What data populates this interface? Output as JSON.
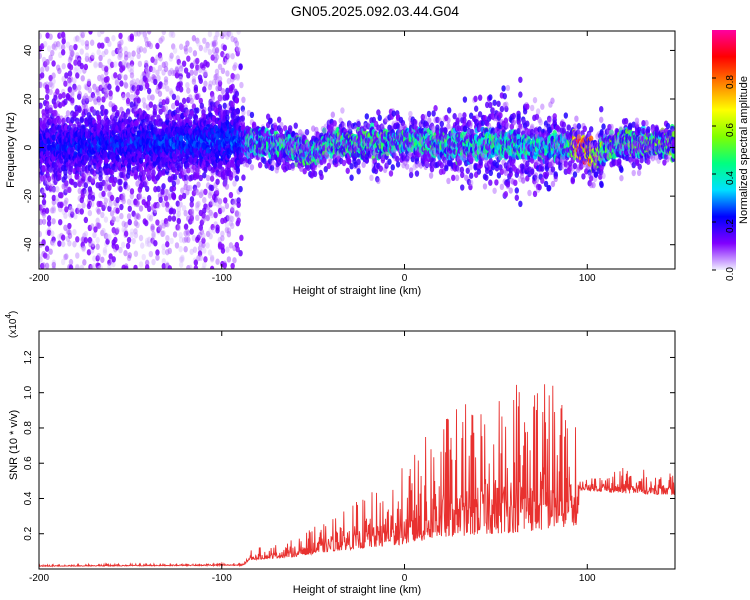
{
  "figure": {
    "title": "GN05.2025.092.03.44.G04"
  },
  "chart_data": [
    {
      "type": "heatmap",
      "xlabel": "Height of straight line (km)",
      "ylabel": "Frequency (Hz)",
      "xlim": [
        -200,
        148
      ],
      "ylim": [
        -50,
        48
      ],
      "xticks": [
        -200,
        -100,
        0,
        100
      ],
      "yticks": [
        -40,
        -20,
        0,
        20,
        40
      ],
      "grid": false,
      "colorbar": {
        "label": "Normalized spectral amplitude",
        "range": [
          0,
          1
        ],
        "ticks": [
          "0.0",
          "0.2",
          "0.4",
          "0.6",
          "0.8"
        ],
        "colors": [
          "#f0f0ff",
          "#8000ff",
          "#0000ff",
          "#00e0ff",
          "#00ff80",
          "#80ff00",
          "#ffff00",
          "#ff8000",
          "#ff0000",
          "#ff00a0"
        ]
      },
      "center_frequency_profile": [
        {
          "x": -200,
          "y": 0
        },
        {
          "x": -90,
          "y": 3
        },
        {
          "x": -80,
          "y": 2
        },
        {
          "x": -70,
          "y": 1
        },
        {
          "x": -60,
          "y": 0
        },
        {
          "x": -50,
          "y": -3
        },
        {
          "x": -40,
          "y": 2
        },
        {
          "x": -30,
          "y": 1
        },
        {
          "x": -20,
          "y": 1
        },
        {
          "x": -10,
          "y": 2
        },
        {
          "x": 0,
          "y": 3
        },
        {
          "x": 10,
          "y": 2
        },
        {
          "x": 20,
          "y": 1
        },
        {
          "x": 30,
          "y": 0
        },
        {
          "x": 40,
          "y": 1
        },
        {
          "x": 50,
          "y": 2
        },
        {
          "x": 60,
          "y": 1
        },
        {
          "x": 70,
          "y": 0
        },
        {
          "x": 80,
          "y": 0
        },
        {
          "x": 90,
          "y": 1
        },
        {
          "x": 100,
          "y": 0
        },
        {
          "x": 105,
          "y": -5
        },
        {
          "x": 110,
          "y": 0
        },
        {
          "x": 120,
          "y": 2
        },
        {
          "x": 130,
          "y": 1
        },
        {
          "x": 140,
          "y": 2
        },
        {
          "x": 148,
          "y": 1
        }
      ],
      "spread_hz": [
        {
          "x": -200,
          "sd": 45
        },
        {
          "x": -90,
          "sd": 45
        },
        {
          "x": -88,
          "sd": 6
        },
        {
          "x": 20,
          "sd": 8
        },
        {
          "x": 60,
          "sd": 14
        },
        {
          "x": 90,
          "sd": 8
        },
        {
          "x": 148,
          "sd": 4
        }
      ],
      "peak_amplitude": [
        {
          "x": -200,
          "a": 0.15
        },
        {
          "x": -90,
          "a": 0.2
        },
        {
          "x": -85,
          "a": 0.45
        },
        {
          "x": -20,
          "a": 0.5
        },
        {
          "x": 40,
          "a": 0.45
        },
        {
          "x": 90,
          "a": 0.45
        },
        {
          "x": 95,
          "a": 0.95
        },
        {
          "x": 110,
          "a": 0.5
        },
        {
          "x": 148,
          "a": 0.55
        }
      ]
    },
    {
      "type": "line",
      "xlabel": "Height of straight line (km)",
      "ylabel": "SNR (10 * v/v)",
      "y_multiplier": "x10^4",
      "xlim": [
        -200,
        148
      ],
      "ylim": [
        0,
        1.35
      ],
      "xticks": [
        -200,
        -100,
        0,
        100
      ],
      "yticks": [
        0.2,
        0.4,
        0.6,
        0.8,
        1.0,
        1.2
      ],
      "grid": false,
      "color": "#e8312f",
      "envelope": [
        {
          "x": -200,
          "base": 0.015,
          "amp": 0.01
        },
        {
          "x": -88,
          "base": 0.02,
          "amp": 0.015
        },
        {
          "x": -85,
          "base": 0.05,
          "amp": 0.06
        },
        {
          "x": -60,
          "base": 0.07,
          "amp": 0.1
        },
        {
          "x": -40,
          "base": 0.1,
          "amp": 0.2
        },
        {
          "x": -20,
          "base": 0.12,
          "amp": 0.3
        },
        {
          "x": 0,
          "base": 0.14,
          "amp": 0.45
        },
        {
          "x": 20,
          "base": 0.18,
          "amp": 0.7
        },
        {
          "x": 50,
          "base": 0.2,
          "amp": 0.85
        },
        {
          "x": 75,
          "base": 0.22,
          "amp": 1.0
        },
        {
          "x": 95,
          "base": 0.25,
          "amp": 0.55
        },
        {
          "x": 96,
          "base": 0.45,
          "amp": 0.06
        },
        {
          "x": 120,
          "base": 0.43,
          "amp": 0.15
        },
        {
          "x": 148,
          "base": 0.42,
          "amp": 0.12
        }
      ]
    }
  ]
}
